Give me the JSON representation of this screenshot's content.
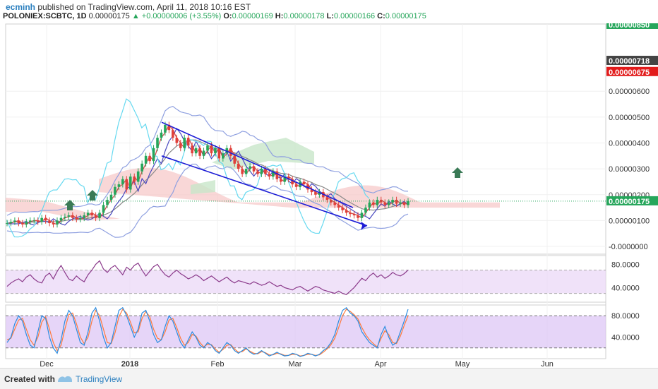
{
  "header": {
    "user": "ecminh",
    "published": "published on TradingView.com, April 11, 2018 10:16 EST",
    "symbol": "POLONIEX:SCBTC, 1D",
    "last": "0.00000175",
    "change": "▲ +0.00000006 (+3.55%)",
    "o_label": "O:",
    "o": "0.00000169",
    "h_label": "H:",
    "h": "0.00000178",
    "l_label": "L:",
    "l": "0.00000166",
    "c_label": "C:",
    "c": "0.00000175"
  },
  "footer": {
    "created": "Created with",
    "brand": "TradingView"
  },
  "colors": {
    "up": "#26a65b",
    "down": "#e0403a",
    "bb": "#8fa0e0",
    "cloud_red": "#f7c6c6",
    "cloud_green": "#c8e6c9",
    "chikou": "#66d9f0",
    "wedge": "#1c1cd6",
    "rsi": "#8b3a8b",
    "stoch_k": "#2b8ce0",
    "stoch_d": "#ff7a3d",
    "band": "#ead6f7",
    "arrow": "#3a7a56"
  },
  "chart_data": [
    {
      "type": "candlestick",
      "x_tick_labels": [
        "Dec",
        "2018",
        "Feb",
        "Mar",
        "Apr",
        "May",
        "Jun"
      ],
      "y_tick_labels": [
        "0.00000600",
        "0.00000500",
        "0.00000400",
        "0.00000300",
        "0.00000200",
        "0.00000100",
        "-0.0000000"
      ],
      "ylim": [
        -3e-07,
        8.6e-06
      ],
      "price_labels": [
        {
          "label": "0.00000718",
          "value": 7.18e-06,
          "bg": "#444444"
        },
        {
          "label": "0.00000675",
          "value": 6.75e-06,
          "bg": "#e21b1b"
        },
        {
          "label": "0.00000175",
          "value": 1.75e-06,
          "bg": "#26a65b"
        }
      ],
      "top_label": {
        "label": "0.00000850",
        "value": 8.5e-06,
        "bg": "#26a65b"
      },
      "last_price": 1.75e-06,
      "close_series": [
        0.9,
        0.95,
        1.0,
        0.9,
        0.85,
        0.95,
        1.0,
        1.0,
        0.95,
        1.1,
        1.0,
        0.9,
        0.85,
        1.0,
        1.1,
        1.15,
        1.2,
        1.1,
        1.05,
        1.1,
        1.2,
        1.3,
        1.2,
        1.1,
        1.3,
        1.6,
        1.8,
        2.0,
        2.3,
        2.4,
        2.6,
        2.2,
        2.7,
        2.5,
        2.9,
        3.2,
        3.5,
        3.3,
        3.8,
        4.2,
        4.4,
        4.7,
        4.5,
        4.2,
        4.0,
        3.8,
        4.2,
        3.9,
        3.6,
        3.8,
        3.5,
        3.7,
        3.9,
        3.6,
        3.8,
        3.4,
        3.6,
        3.8,
        3.5,
        3.2,
        3.0,
        2.8,
        3.0,
        3.1,
        2.9,
        2.8,
        3.0,
        2.8,
        2.7,
        2.9,
        2.6,
        2.5,
        2.7,
        2.6,
        2.4,
        2.3,
        2.5,
        2.4,
        2.2,
        2.1,
        2.0,
        2.1,
        1.9,
        1.8,
        1.7,
        1.6,
        1.5,
        1.4,
        1.3,
        1.25,
        1.2,
        1.1,
        1.3,
        1.5,
        1.7,
        1.6,
        1.8,
        1.7,
        1.6,
        1.7,
        1.8,
        1.65,
        1.7,
        1.6,
        1.75
      ],
      "wedge": {
        "upper": [
          [
            4.8e-06,
            0
          ],
          [
            1.5e-06,
            1
          ]
        ],
        "lower": [
          [
            3.4e-06,
            0
          ],
          [
            8e-07,
            1
          ]
        ]
      }
    },
    {
      "type": "line",
      "name": "RSI",
      "y_tick_labels": [
        "80.0000",
        "40.0000"
      ],
      "ylim": [
        15,
        95
      ],
      "levels": [
        70,
        30
      ],
      "values": [
        42,
        48,
        52,
        55,
        50,
        58,
        62,
        55,
        50,
        48,
        60,
        65,
        55,
        68,
        78,
        66,
        55,
        52,
        60,
        54,
        50,
        62,
        70,
        80,
        86,
        72,
        66,
        74,
        78,
        70,
        62,
        75,
        70,
        78,
        82,
        70,
        60,
        68,
        76,
        80,
        70,
        62,
        58,
        65,
        70,
        64,
        60,
        55,
        58,
        62,
        58,
        52,
        56,
        60,
        55,
        50,
        54,
        58,
        52,
        48,
        52,
        50,
        48,
        46,
        50,
        47,
        44,
        46,
        50,
        46,
        42,
        44,
        40,
        38,
        36,
        40,
        42,
        38,
        34,
        38,
        42,
        40,
        36,
        34,
        32,
        30,
        34,
        30,
        28,
        34,
        40,
        48,
        56,
        52,
        60,
        65,
        58,
        62,
        56,
        60,
        66,
        62,
        60,
        64,
        70
      ]
    },
    {
      "type": "line",
      "name": "Stoch",
      "y_tick_labels": [
        "80.0000",
        "40.0000"
      ],
      "ylim": [
        0,
        100
      ],
      "levels": [
        80,
        20
      ],
      "k": [
        30,
        40,
        65,
        80,
        70,
        45,
        25,
        20,
        50,
        80,
        75,
        40,
        20,
        10,
        35,
        70,
        90,
        80,
        55,
        30,
        25,
        50,
        85,
        95,
        70,
        40,
        20,
        30,
        60,
        90,
        95,
        80,
        60,
        40,
        55,
        85,
        90,
        70,
        45,
        30,
        35,
        60,
        80,
        70,
        50,
        30,
        20,
        35,
        50,
        40,
        25,
        20,
        30,
        25,
        15,
        10,
        20,
        30,
        25,
        15,
        10,
        15,
        20,
        12,
        8,
        10,
        15,
        10,
        5,
        8,
        12,
        8,
        5,
        6,
        10,
        8,
        4,
        6,
        10,
        8,
        5,
        8,
        15,
        20,
        30,
        45,
        70,
        90,
        95,
        85,
        80,
        70,
        50,
        40,
        30,
        25,
        20,
        45,
        60,
        40,
        25,
        30,
        50,
        70,
        92
      ],
      "d": [
        35,
        38,
        55,
        72,
        75,
        55,
        35,
        25,
        40,
        68,
        78,
        55,
        30,
        15,
        25,
        55,
        82,
        85,
        65,
        40,
        28,
        40,
        70,
        90,
        80,
        55,
        30,
        28,
        48,
        78,
        92,
        85,
        68,
        48,
        50,
        75,
        88,
        78,
        55,
        38,
        35,
        50,
        72,
        75,
        58,
        38,
        25,
        30,
        45,
        42,
        30,
        22,
        27,
        26,
        18,
        12,
        17,
        25,
        26,
        18,
        12,
        13,
        18,
        14,
        10,
        9,
        13,
        11,
        7,
        7,
        10,
        9,
        6,
        6,
        8,
        8,
        5,
        6,
        8,
        8,
        6,
        7,
        12,
        18,
        26,
        38,
        58,
        80,
        92,
        88,
        82,
        74,
        58,
        45,
        35,
        28,
        22,
        38,
        52,
        45,
        30,
        28,
        42,
        62,
        80
      ]
    }
  ]
}
